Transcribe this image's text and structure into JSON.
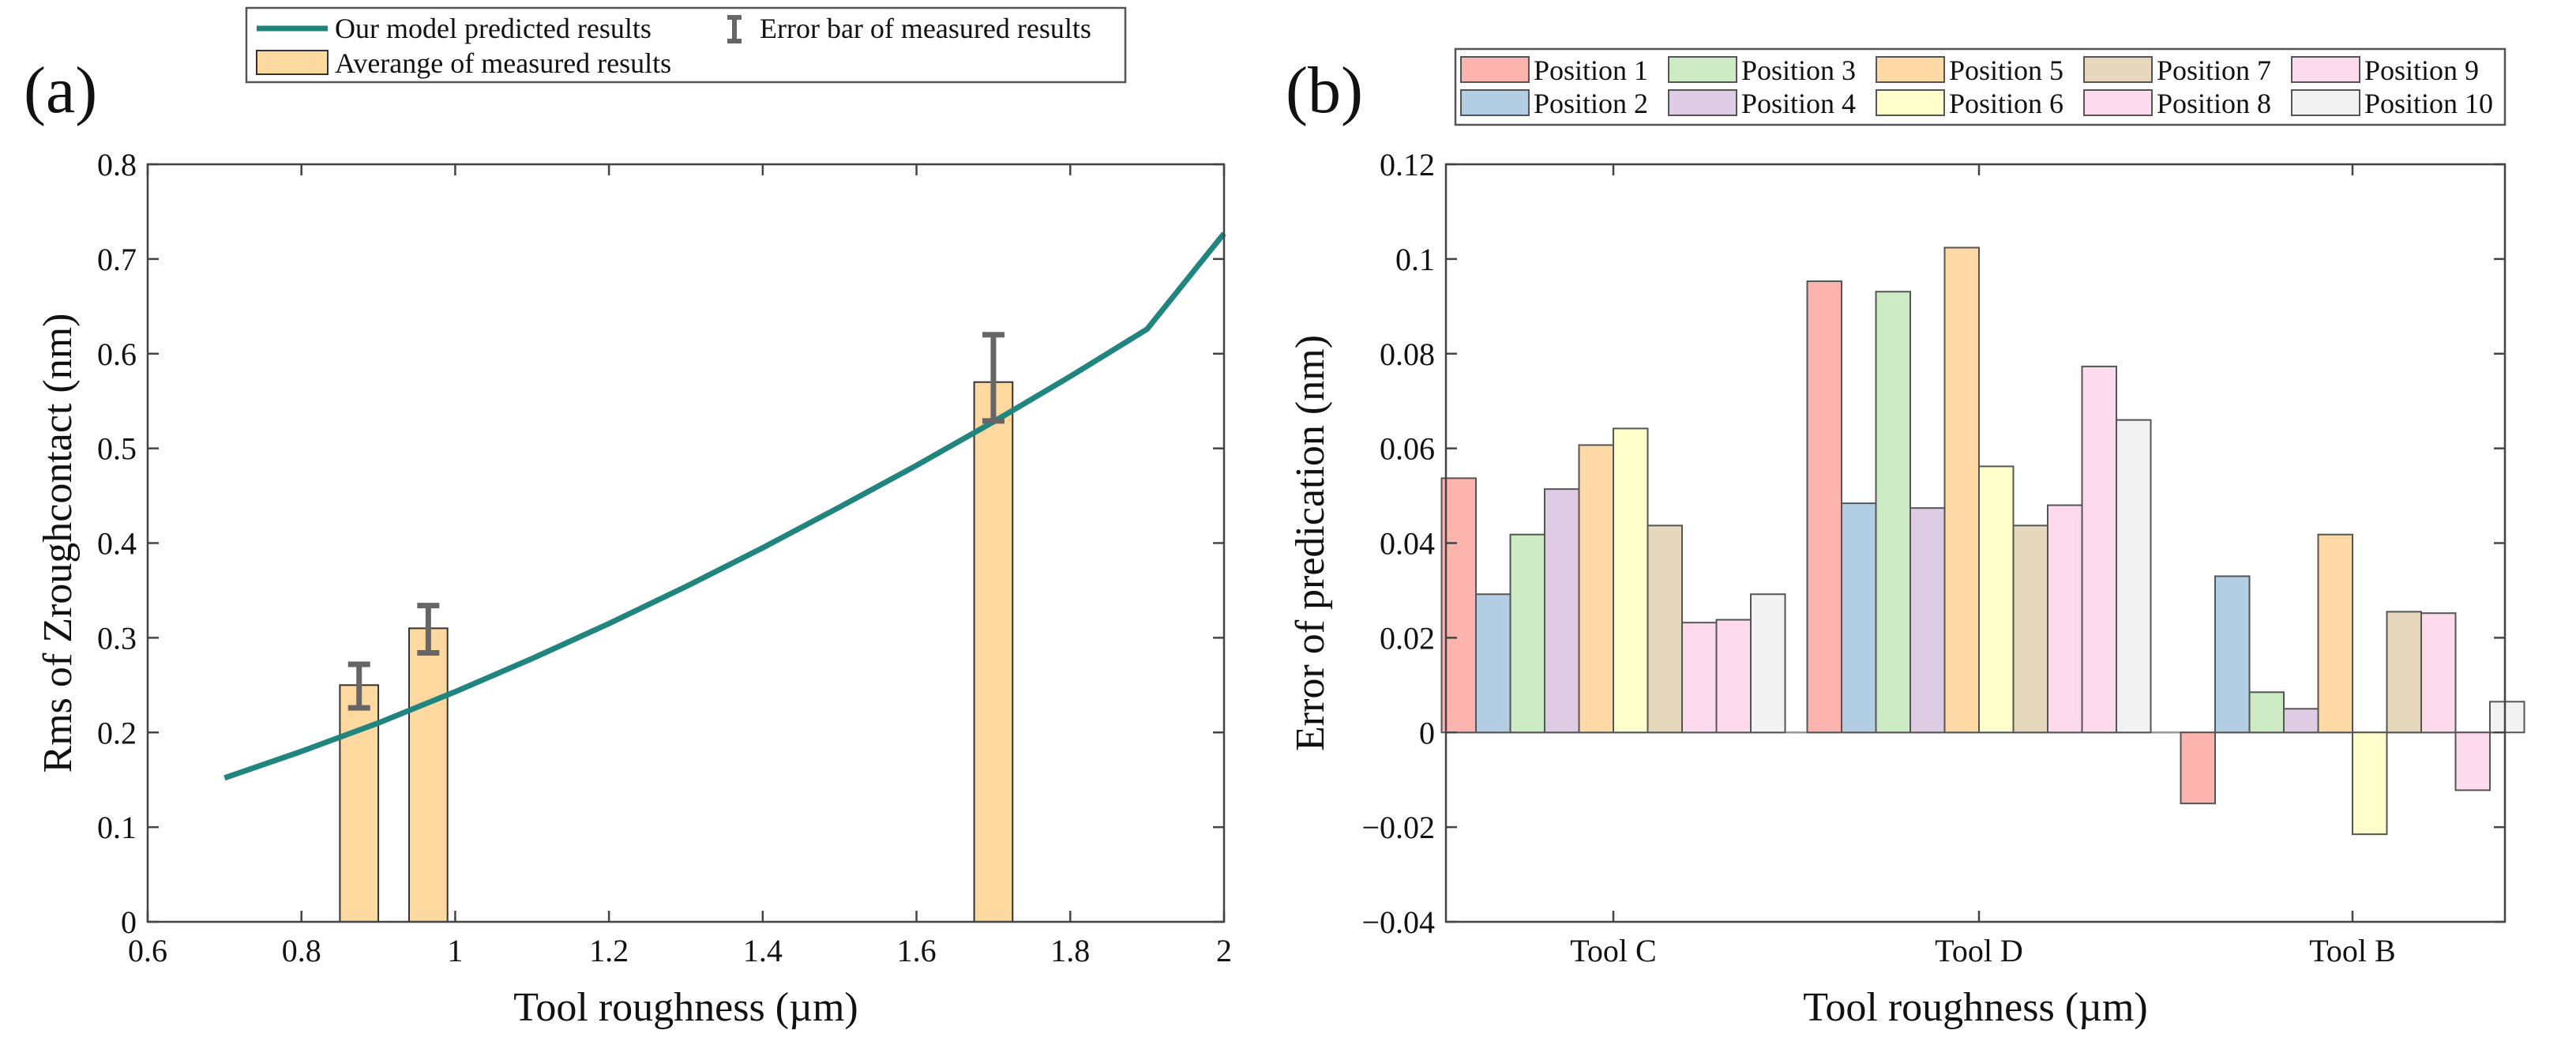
{
  "panel_labels": {
    "a": "(a)",
    "b": "(b)"
  },
  "chart_data": [
    {
      "type": "bar+line",
      "panel": "(a)",
      "title": "",
      "xlabel": "Tool roughness (µm)",
      "ylabel": "Rms of Zroughcontact (nm)",
      "xlim": [
        0.6,
        2
      ],
      "ylim": [
        0,
        0.8
      ],
      "xticks": [
        "0.6",
        "0.8",
        "1",
        "1.2",
        "1.4",
        "1.6",
        "1.8",
        "2"
      ],
      "yticks": [
        "0",
        "0.1",
        "0.2",
        "0.3",
        "0.4",
        "0.5",
        "0.6",
        "0.7",
        "0.8"
      ],
      "legend": {
        "placement": "top",
        "entries": [
          "Our model predicted results",
          "Error bar of measured results",
          "Averange of measured results"
        ]
      },
      "line": {
        "name": "Our model predicted results",
        "color": "#21857f",
        "x": [
          0.7,
          0.8,
          0.9,
          1.0,
          1.1,
          1.2,
          1.3,
          1.4,
          1.5,
          1.6,
          1.7,
          1.8,
          1.9,
          2.0
        ],
        "y": [
          0.152,
          0.18,
          0.21,
          0.243,
          0.278,
          0.315,
          0.354,
          0.395,
          0.438,
          0.482,
          0.528,
          0.576,
          0.626,
          0.727
        ]
      },
      "bars": {
        "name": "Averange of measured results",
        "color": "#fdd9a0",
        "width": 0.05,
        "x": [
          0.875,
          0.965,
          1.7
        ],
        "y": [
          0.25,
          0.31,
          0.57
        ],
        "err_low": [
          0.226,
          0.284,
          0.529
        ],
        "err_high": [
          0.272,
          0.334,
          0.62
        ]
      }
    },
    {
      "type": "bar",
      "panel": "(b)",
      "xlabel": "Tool roughness (µm)",
      "ylabel": "Error of predication (nm)",
      "ylim": [
        -0.04,
        0.12
      ],
      "yticks": [
        "−0.04",
        "−0.02",
        "0",
        "0.02",
        "0.04",
        "0.06",
        "0.08",
        "0.1",
        "0.12"
      ],
      "categories": [
        "Tool C",
        "Tool D",
        "Tool B"
      ],
      "legend": {
        "placement": "top"
      },
      "series": [
        {
          "name": "Position 1",
          "color": "#fdb4ae",
          "values": [
            0.0537,
            0.0953,
            -0.015
          ]
        },
        {
          "name": "Position 2",
          "color": "#b3cde3",
          "values": [
            0.0292,
            0.0484,
            0.033
          ]
        },
        {
          "name": "Position 3",
          "color": "#ccebc5",
          "values": [
            0.0418,
            0.0931,
            0.0085
          ]
        },
        {
          "name": "Position 4",
          "color": "#decbe4",
          "values": [
            0.0514,
            0.0474,
            0.005
          ]
        },
        {
          "name": "Position 5",
          "color": "#fed9a6",
          "values": [
            0.0607,
            0.1024,
            0.0418
          ]
        },
        {
          "name": "Position 6",
          "color": "#ffffcc",
          "values": [
            0.0642,
            0.0562,
            -0.0215
          ]
        },
        {
          "name": "Position 7",
          "color": "#e5d8bd",
          "values": [
            0.0437,
            0.0437,
            0.0255
          ]
        },
        {
          "name": "Position 8",
          "color": "#fddaec",
          "values": [
            0.0232,
            0.048,
            0.0252
          ]
        },
        {
          "name": "Position 9",
          "color": "#fddaec",
          "values": [
            0.0238,
            0.0773,
            -0.0122
          ]
        },
        {
          "name": "Position 10",
          "color": "#f2f2f2",
          "values": [
            0.0292,
            0.066,
            0.0065
          ]
        }
      ]
    }
  ]
}
